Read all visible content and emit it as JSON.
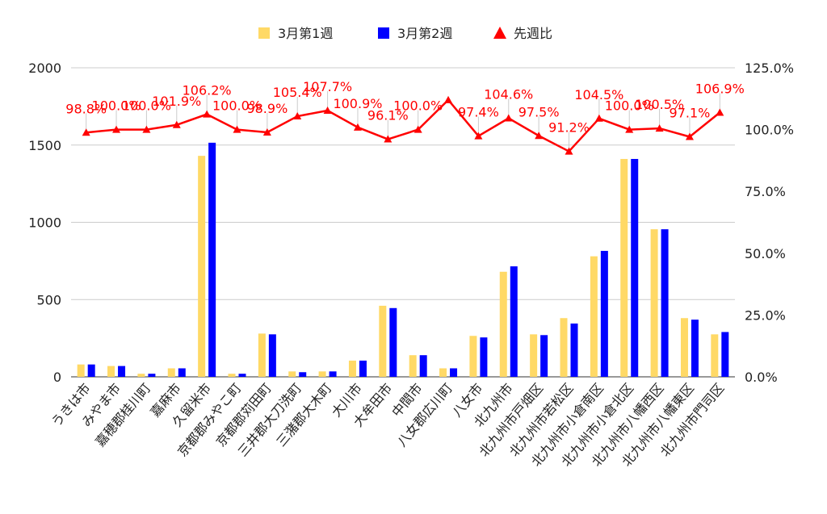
{
  "chart_data": {
    "type": "bar",
    "categories": [
      "うきは市",
      "みやま市",
      "嘉穂郡桂川町",
      "嘉麻市",
      "久留米市",
      "京都郡みやこ町",
      "京都郡苅田町",
      "三井郡大刀洗町",
      "三潴郡大木町",
      "大川市",
      "大牟田市",
      "中間市",
      "八女郡広川町",
      "八女市",
      "北九州市",
      "北九州市戸畑区",
      "北九州市若松区",
      "北九州市小倉南区",
      "北九州市小倉北区",
      "北九州市八幡西区",
      "北九州市八幡東区",
      "北九州市門司区"
    ],
    "series": [
      {
        "name": "3月第1週",
        "type": "bar",
        "axis": "left",
        "color": "#ffd966",
        "values": [
          80,
          70,
          20,
          55,
          1430,
          20,
          280,
          35,
          35,
          105,
          460,
          140,
          55,
          265,
          680,
          275,
          380,
          780,
          1410,
          955,
          380,
          275
        ]
      },
      {
        "name": "3月第2週",
        "type": "bar",
        "axis": "left",
        "color": "#0000ff",
        "values": [
          80,
          70,
          20,
          55,
          1515,
          20,
          275,
          30,
          35,
          105,
          445,
          140,
          55,
          255,
          715,
          270,
          345,
          815,
          1410,
          955,
          370,
          290
        ]
      },
      {
        "name": "先週比",
        "type": "line",
        "axis": "right",
        "color": "#ff0000",
        "values": [
          98.8,
          100.0,
          100.0,
          101.9,
          106.2,
          100.0,
          98.9,
          105.4,
          107.7,
          100.9,
          96.1,
          100.0,
          112.0,
          97.4,
          104.6,
          97.5,
          91.2,
          104.5,
          100.0,
          100.5,
          97.1,
          106.9
        ],
        "labels": [
          "98.8%",
          "100.0%",
          "100.0%",
          "101.9%",
          "106.2%",
          "100.0%",
          "98.9%",
          "105.4%",
          "107.7%",
          "100.9%",
          "96.1%",
          "100.0%",
          "",
          "97.4%",
          "104.6%",
          "97.5%",
          "91.2%",
          "104.5%",
          "100.0%",
          "100.5%",
          "97.1%",
          "106.9%"
        ]
      }
    ],
    "y_left": {
      "ylim": [
        0,
        2000
      ],
      "ticks": [
        "0",
        "500",
        "1000",
        "1500",
        "2000"
      ]
    },
    "y_right": {
      "ylim": [
        0,
        125
      ],
      "ticks": [
        "0.0%",
        "25.0%",
        "50.0%",
        "75.0%",
        "100.0%",
        "125.0%"
      ]
    },
    "grid": true,
    "legend_position": "top-center",
    "colors": {
      "gridline": "#cccccc",
      "text": "#222222"
    }
  }
}
